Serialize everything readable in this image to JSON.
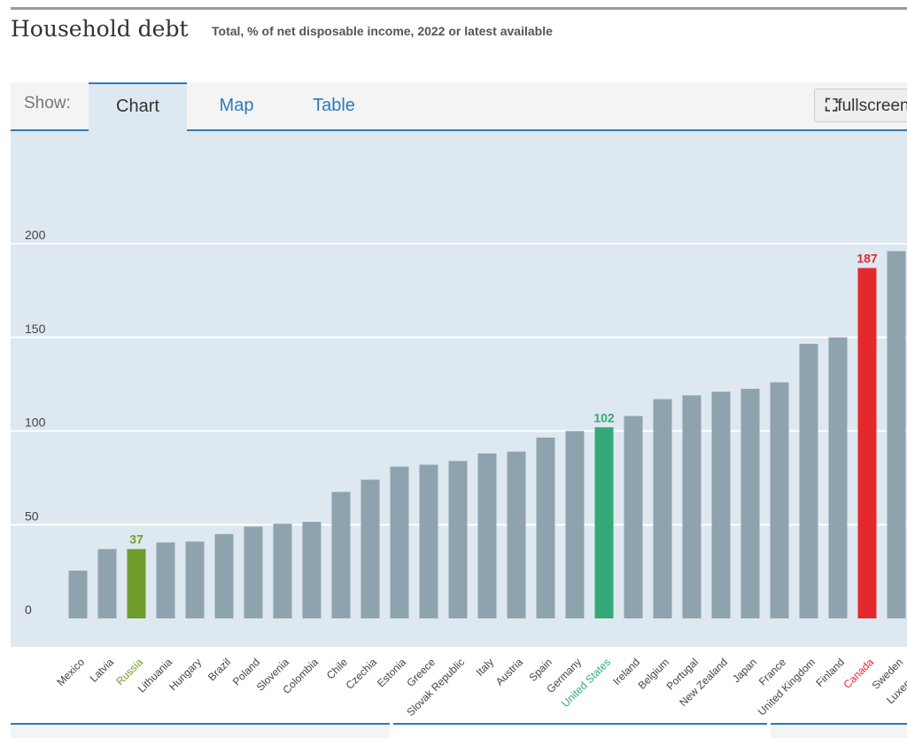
{
  "header": {
    "title": "Household debt",
    "subtitle": "Total, % of net disposable income, 2022 or latest available"
  },
  "tabs": {
    "show_label": "Show:",
    "items": [
      "Chart",
      "Map",
      "Table"
    ],
    "active": "Chart",
    "fullscreen_label": "fullscreen"
  },
  "colors": {
    "default": "#8fa3af",
    "russia": "#6f9c2b",
    "united_states": "#35a877",
    "canada": "#e3292d",
    "background": "#dde8f0"
  },
  "chart_data": {
    "type": "bar",
    "ylim": [
      0,
      200
    ],
    "yticks": [
      0,
      50,
      100,
      150,
      200
    ],
    "grid": true,
    "categories": [
      "Mexico",
      "Latvia",
      "Russia",
      "Lithuania",
      "Hungary",
      "Brazil",
      "Poland",
      "Slovenia",
      "Colombia",
      "Chile",
      "Czechia",
      "Estonia",
      "Greece",
      "Slovak Republic",
      "Italy",
      "Austria",
      "Spain",
      "Germany",
      "United States",
      "Ireland",
      "Belgium",
      "Portugal",
      "New Zealand",
      "Japan",
      "France",
      "United Kingdom",
      "Finland",
      "Canada",
      "Sweden",
      "Luxembourg"
    ],
    "values": [
      25.5,
      37,
      37,
      40.5,
      41,
      45,
      49,
      50.5,
      51.5,
      67.5,
      74,
      81,
      82,
      84,
      88,
      89,
      96.5,
      100,
      102,
      108,
      117,
      119,
      121,
      122.5,
      126,
      146.5,
      150,
      187,
      196,
      null
    ],
    "highlights": {
      "Russia": {
        "color": "#6f9c2b",
        "label": "37"
      },
      "United States": {
        "color": "#35a877",
        "label": "102"
      },
      "Canada": {
        "color": "#e3292d",
        "label": "187"
      }
    }
  }
}
